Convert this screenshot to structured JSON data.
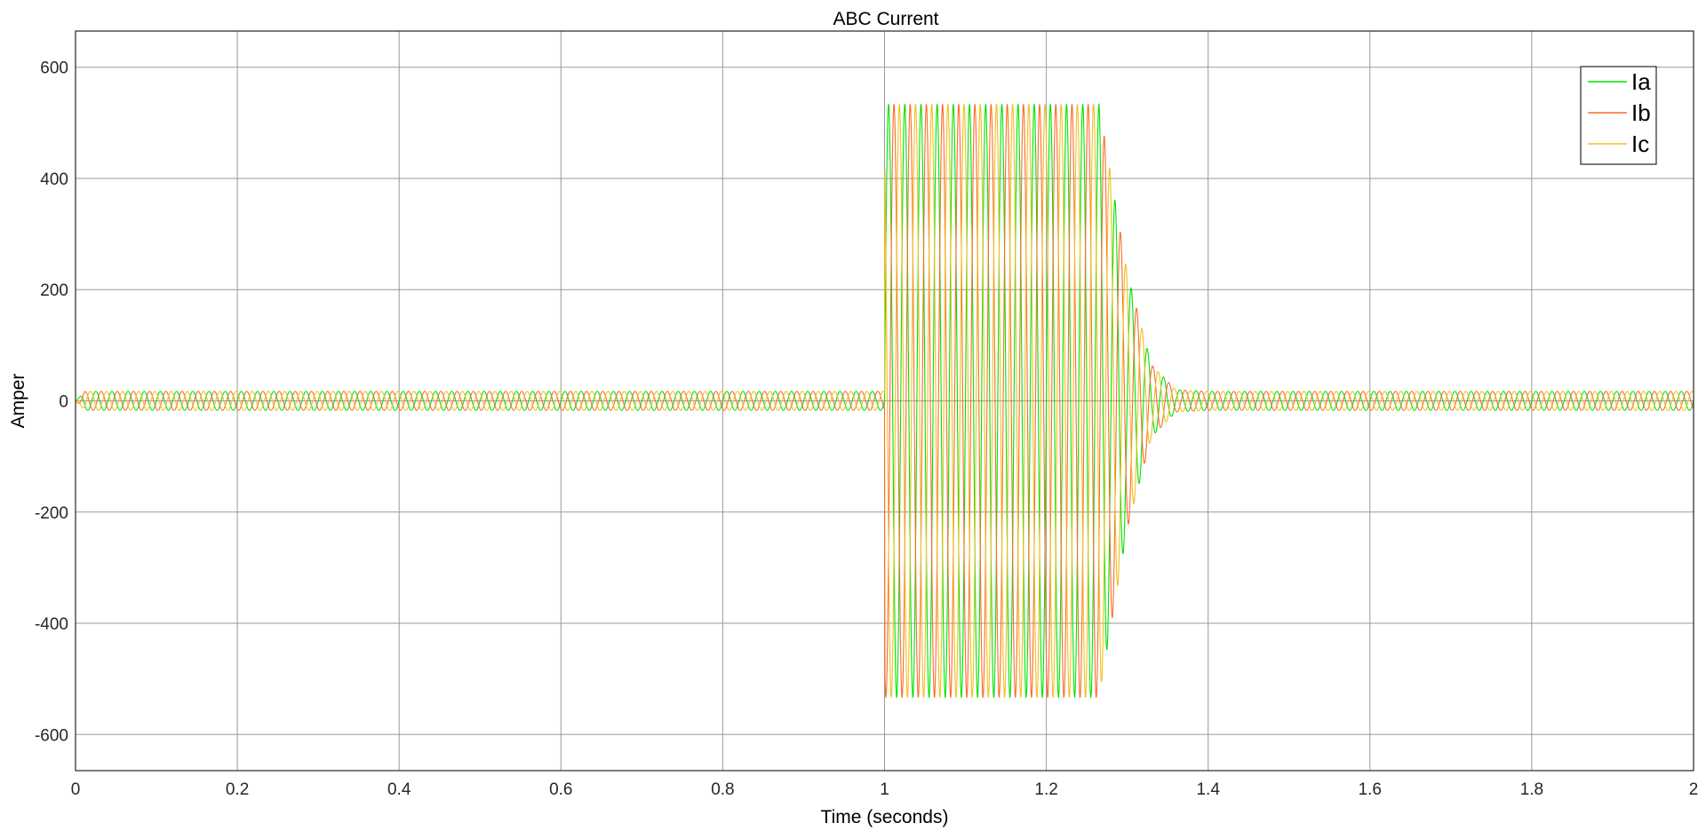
{
  "chart_data": {
    "type": "line",
    "title": "ABC Current",
    "xlabel": "Time (seconds)",
    "ylabel": "Amper",
    "xlim": [
      0,
      2
    ],
    "ylim": [
      -665,
      665
    ],
    "x_ticks": [
      0,
      0.2,
      0.4,
      0.6,
      0.8,
      1,
      1.2,
      1.4,
      1.6,
      1.8,
      2
    ],
    "x_tick_labels": [
      "0",
      "0.2",
      "0.4",
      "0.6",
      "0.8",
      "1",
      "1.2",
      "1.4",
      "1.6",
      "1.8",
      "2"
    ],
    "y_ticks": [
      600,
      400,
      200,
      0,
      -200,
      -400,
      -600
    ],
    "y_tick_labels": [
      "600",
      "400",
      "200",
      "0",
      "-200",
      "-400",
      "-600"
    ],
    "grid": true,
    "legend_position": "top-right",
    "frequency_hz": 50,
    "series": [
      {
        "name": "Ia",
        "color": "#00e400",
        "phase_deg": 0,
        "amplitude_segments": [
          {
            "t": 0,
            "amp": 0
          },
          {
            "t": 0.012,
            "amp": 17
          },
          {
            "t": 1.0,
            "amp": 17
          },
          {
            "t": 1.0005,
            "amp": 533
          },
          {
            "t": 1.265,
            "amp": 533
          },
          {
            "t": 1.3,
            "amp": 230
          },
          {
            "t": 1.33,
            "amp": 65
          },
          {
            "t": 1.36,
            "amp": 20
          },
          {
            "t": 1.4,
            "amp": 17
          },
          {
            "t": 2.0,
            "amp": 17
          }
        ]
      },
      {
        "name": "Ib",
        "color": "#ff6a2a",
        "phase_deg": -120,
        "amplitude_segments": [
          {
            "t": 0,
            "amp": 0
          },
          {
            "t": 0.012,
            "amp": 17
          },
          {
            "t": 1.0,
            "amp": 17
          },
          {
            "t": 1.0005,
            "amp": 533
          },
          {
            "t": 1.265,
            "amp": 533
          },
          {
            "t": 1.3,
            "amp": 230
          },
          {
            "t": 1.33,
            "amp": 65
          },
          {
            "t": 1.36,
            "amp": 20
          },
          {
            "t": 1.4,
            "amp": 17
          },
          {
            "t": 2.0,
            "amp": 17
          }
        ]
      },
      {
        "name": "Ic",
        "color": "#f0c020",
        "phase_deg": 120,
        "amplitude_segments": [
          {
            "t": 0,
            "amp": 0
          },
          {
            "t": 0.012,
            "amp": 17
          },
          {
            "t": 1.0,
            "amp": 17
          },
          {
            "t": 1.0005,
            "amp": 533
          },
          {
            "t": 1.265,
            "amp": 533
          },
          {
            "t": 1.3,
            "amp": 230
          },
          {
            "t": 1.33,
            "amp": 65
          },
          {
            "t": 1.36,
            "amp": 20
          },
          {
            "t": 1.4,
            "amp": 17
          },
          {
            "t": 2.0,
            "amp": 17
          }
        ]
      }
    ]
  }
}
